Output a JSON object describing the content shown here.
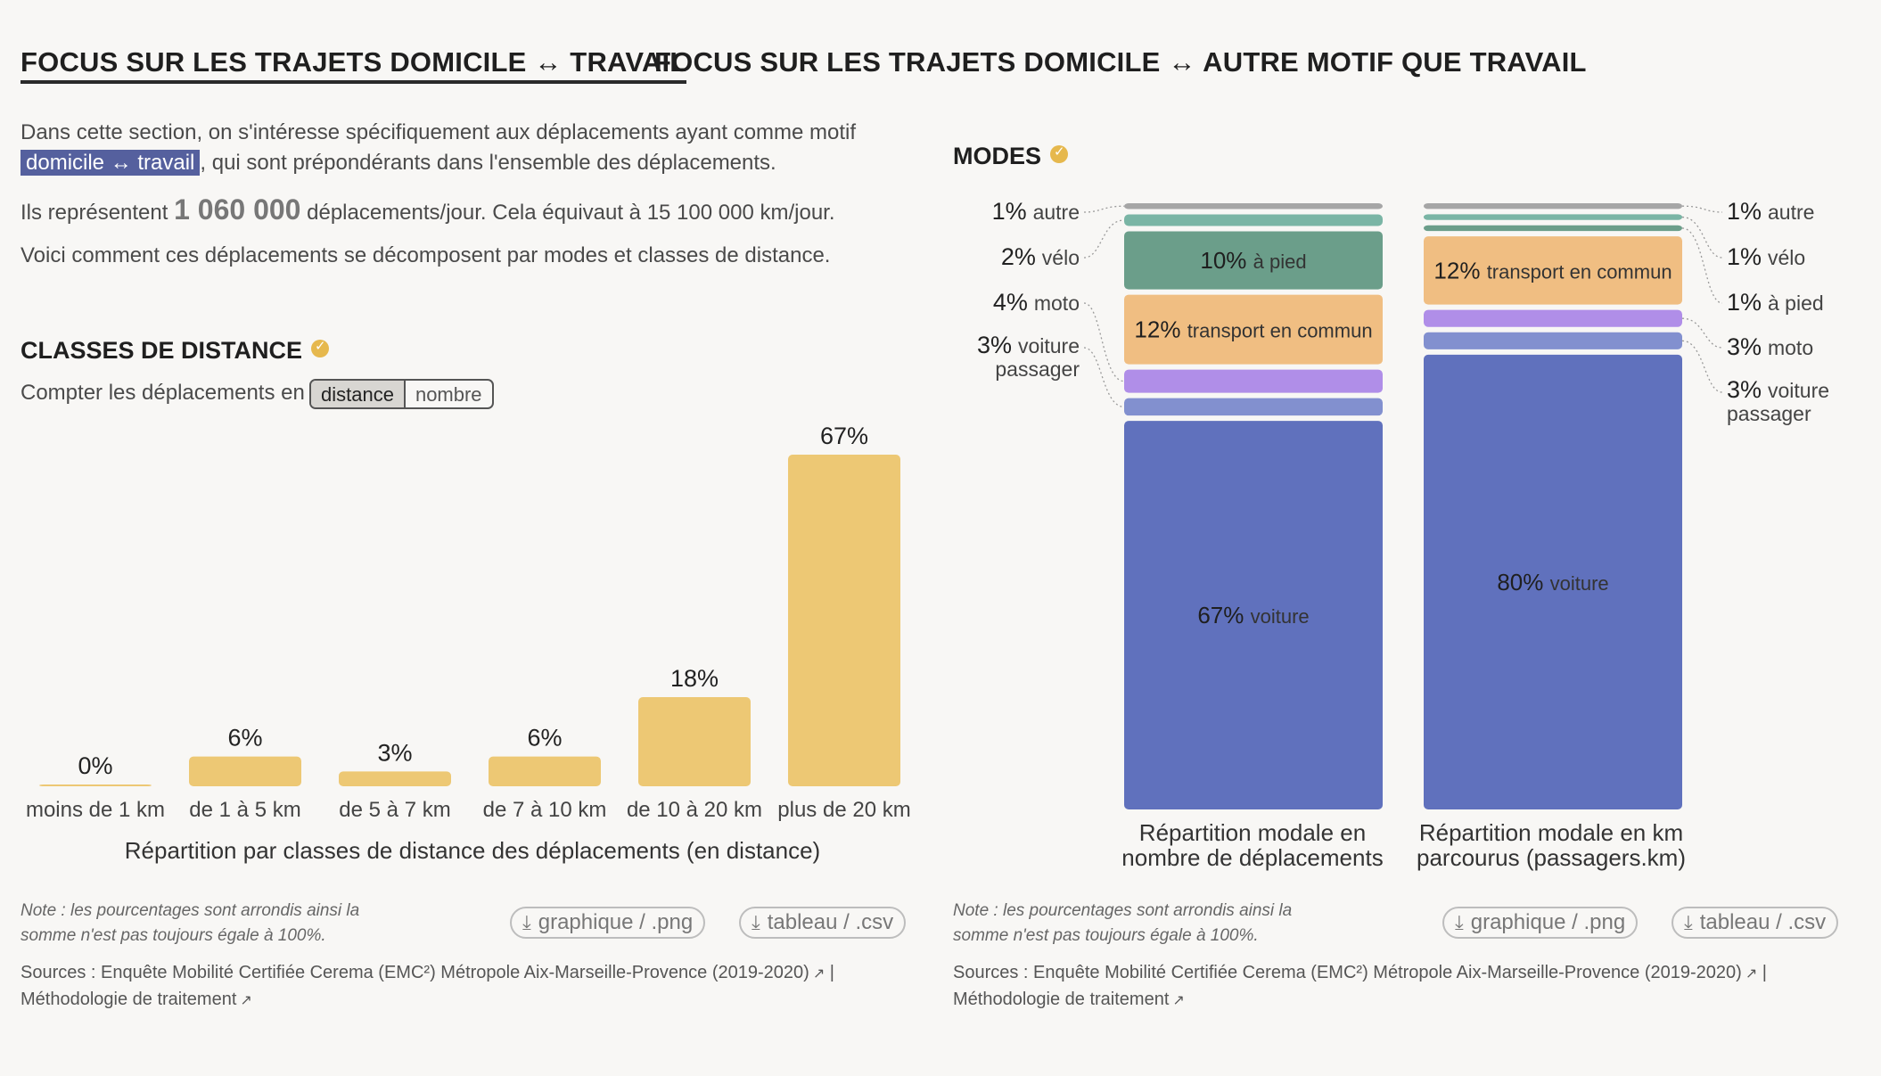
{
  "tabs": [
    {
      "label": "FOCUS SUR LES TRAJETS DOMICILE ↔ TRAVAIL",
      "active": true
    },
    {
      "label": "FOCUS SUR LES TRAJETS DOMICILE ↔ AUTRE MOTIF QUE TRAVAIL",
      "active": false
    }
  ],
  "intro": {
    "line1": "Dans cette section, on s'intéresse spécifiquement aux déplacements ayant comme motif",
    "highlight": "domicile ↔ travail",
    "line2": ", qui sont prépondérants dans l'ensemble des déplacements.",
    "count_prefix": "Ils représentent ",
    "count_value": "1 060 000",
    "count_suffix": " déplacements/jour. Cela équivaut à 15 100 000 km/jour.",
    "line4": "Voici comment ces déplacements se décomposent par modes et classes de distance."
  },
  "distance": {
    "title": "CLASSES DE DISTANCE",
    "toggle_label": "Compter les déplacements en",
    "toggle_options": [
      "distance",
      "nombre"
    ],
    "toggle_selected": "distance",
    "caption": "Répartition par classes de distance des déplacements (en distance)"
  },
  "modes": {
    "title": "MODES",
    "left_caption": "Répartition modale en nombre de déplacements",
    "right_caption": "Répartition modale en km parcourus (passagers.km)",
    "left_labels": [
      {
        "pct": "1%",
        "text": "autre"
      },
      {
        "pct": "2%",
        "text": "vélo"
      },
      {
        "pct": "4%",
        "text": "moto"
      },
      {
        "pct": "3%",
        "text": "voiture passager"
      }
    ],
    "right_labels": [
      {
        "pct": "1%",
        "text": "autre"
      },
      {
        "pct": "1%",
        "text": "vélo"
      },
      {
        "pct": "1%",
        "text": "à pied"
      },
      {
        "pct": "3%",
        "text": "moto"
      },
      {
        "pct": "3%",
        "text": "voiture passager"
      }
    ]
  },
  "footer": {
    "note_line1": "Note : les pourcentages sont arrondis ainsi la",
    "note_line2": "somme n'est pas toujours égale à 100%.",
    "btn_png": "graphique / .png",
    "btn_csv": "tableau / .csv",
    "source_prefix": "Sources : ",
    "source_link": "Enquête Mobilité Certifiée Cerema (EMC²) Métropole Aix-Marseille-Provence (2019-2020)",
    "method_link": "Méthodologie de traitement"
  },
  "colors": {
    "bar": "#edc874",
    "voiture": "#6071bd",
    "passager": "#8290cf",
    "moto": "#b08ee8",
    "transport": "#f0be82",
    "pied": "#6b9e8a",
    "velo": "#7ab5a5",
    "autre": "#a6a6a6"
  },
  "chart_data": [
    {
      "type": "bar",
      "title": "Répartition par classes de distance des déplacements (en distance)",
      "categories": [
        "moins de 1 km",
        "de 1 à 5 km",
        "de 5 à 7 km",
        "de 7 à 10 km",
        "de 10 à 20 km",
        "plus de 20 km"
      ],
      "values": [
        0,
        6,
        3,
        6,
        18,
        67
      ],
      "value_labels": [
        "0%",
        "6%",
        "3%",
        "6%",
        "18%",
        "67%"
      ],
      "ylim": [
        0,
        67
      ]
    },
    {
      "type": "bar",
      "title": "Répartition modale en nombre de déplacements",
      "stacked": true,
      "segments": [
        {
          "name": "autre",
          "value": 1,
          "key": "autre"
        },
        {
          "name": "vélo",
          "value": 2,
          "key": "velo"
        },
        {
          "name": "à pied",
          "value": 10,
          "key": "pied",
          "label": "10%"
        },
        {
          "name": "transport en commun",
          "value": 12,
          "key": "transport",
          "label": "12%"
        },
        {
          "name": "moto",
          "value": 4,
          "key": "moto"
        },
        {
          "name": "voiture passager",
          "value": 3,
          "key": "passager"
        },
        {
          "name": "voiture",
          "value": 67,
          "key": "voiture",
          "label": "67%"
        }
      ]
    },
    {
      "type": "bar",
      "title": "Répartition modale en km parcourus (passagers.km)",
      "stacked": true,
      "segments": [
        {
          "name": "autre",
          "value": 1,
          "key": "autre"
        },
        {
          "name": "vélo",
          "value": 1,
          "key": "velo"
        },
        {
          "name": "à pied",
          "value": 1,
          "key": "pied"
        },
        {
          "name": "transport en commun",
          "value": 12,
          "key": "transport",
          "label": "12%"
        },
        {
          "name": "moto",
          "value": 3,
          "key": "moto"
        },
        {
          "name": "voiture passager",
          "value": 3,
          "key": "passager"
        },
        {
          "name": "voiture",
          "value": 80,
          "key": "voiture",
          "label": "80%"
        }
      ]
    }
  ]
}
